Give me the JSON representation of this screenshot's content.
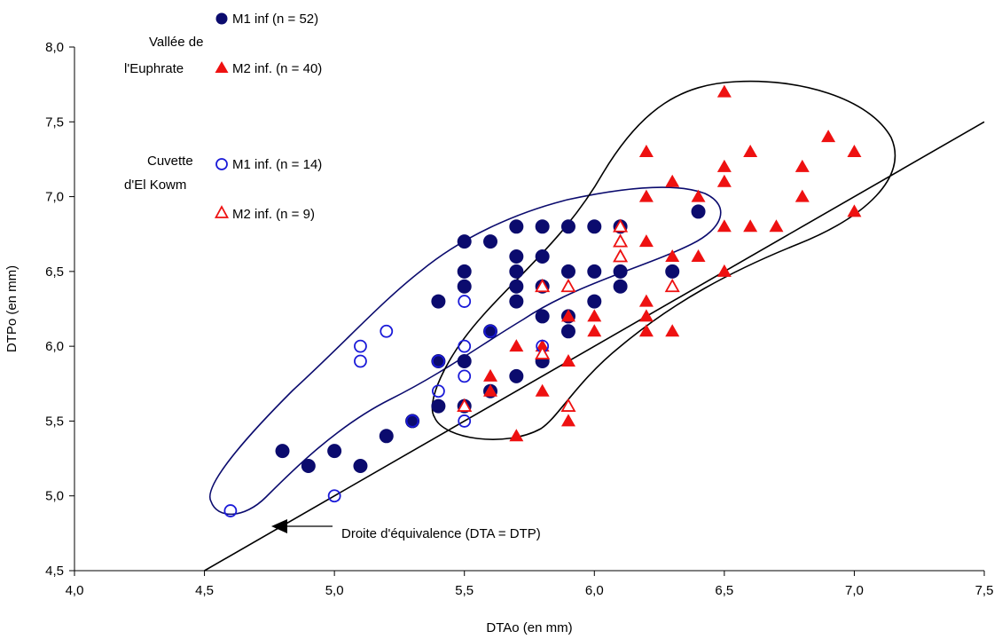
{
  "chart_data": {
    "type": "scatter",
    "xlabel": "DTAo (en mm)",
    "ylabel": "DTPo (en mm)",
    "xlim": [
      4.0,
      7.5
    ],
    "ylim": [
      4.5,
      8.0
    ],
    "xticks": [
      "4,0",
      "4,5",
      "5,0",
      "5,5",
      "6,0",
      "6,5",
      "7,0",
      "7,5"
    ],
    "yticks": [
      "4,5",
      "5,0",
      "5,5",
      "6,0",
      "6,5",
      "7,0",
      "7,5",
      "8,0"
    ],
    "grid": false,
    "legend_groups": [
      {
        "label_lines": [
          "Vallée de",
          "l'Euphrate"
        ]
      },
      {
        "label_lines": [
          "Cuvette",
          "d'El Kowm"
        ]
      }
    ],
    "series": [
      {
        "name": "M1 inf (n = 52)",
        "group": "Vallée de l'Euphrate",
        "marker": "filled-circle",
        "color": "#0b0b6e",
        "points": [
          [
            4.8,
            5.3
          ],
          [
            4.9,
            5.2
          ],
          [
            5.0,
            5.3
          ],
          [
            5.1,
            5.2
          ],
          [
            5.2,
            5.4
          ],
          [
            5.3,
            5.5
          ],
          [
            5.4,
            6.3
          ],
          [
            5.4,
            5.9
          ],
          [
            5.4,
            5.6
          ],
          [
            5.5,
            6.7
          ],
          [
            5.5,
            6.5
          ],
          [
            5.5,
            6.4
          ],
          [
            5.5,
            5.9
          ],
          [
            5.5,
            5.6
          ],
          [
            5.6,
            6.7
          ],
          [
            5.6,
            6.1
          ],
          [
            5.6,
            5.7
          ],
          [
            5.7,
            6.8
          ],
          [
            5.7,
            6.6
          ],
          [
            5.7,
            6.5
          ],
          [
            5.7,
            6.4
          ],
          [
            5.7,
            6.3
          ],
          [
            5.7,
            5.8
          ],
          [
            5.8,
            6.8
          ],
          [
            5.8,
            6.6
          ],
          [
            5.8,
            6.4
          ],
          [
            5.8,
            6.2
          ],
          [
            5.8,
            5.9
          ],
          [
            5.9,
            6.8
          ],
          [
            5.9,
            6.5
          ],
          [
            5.9,
            6.2
          ],
          [
            5.9,
            6.1
          ],
          [
            6.0,
            6.8
          ],
          [
            6.0,
            6.5
          ],
          [
            6.0,
            6.3
          ],
          [
            6.1,
            6.8
          ],
          [
            6.1,
            6.5
          ],
          [
            6.1,
            6.4
          ],
          [
            6.3,
            6.5
          ],
          [
            6.4,
            6.9
          ]
        ]
      },
      {
        "name": "M2 inf. (n = 40)",
        "group": "Vallée de l'Euphrate",
        "marker": "filled-triangle",
        "color": "#ee1111",
        "points": [
          [
            5.5,
            5.6
          ],
          [
            5.6,
            5.8
          ],
          [
            5.6,
            5.7
          ],
          [
            5.7,
            6.0
          ],
          [
            5.7,
            5.4
          ],
          [
            5.8,
            6.0
          ],
          [
            5.8,
            5.7
          ],
          [
            5.9,
            6.2
          ],
          [
            5.9,
            5.9
          ],
          [
            5.9,
            5.5
          ],
          [
            6.0,
            6.2
          ],
          [
            6.0,
            6.1
          ],
          [
            6.2,
            7.3
          ],
          [
            6.2,
            7.0
          ],
          [
            6.2,
            6.7
          ],
          [
            6.2,
            6.3
          ],
          [
            6.2,
            6.2
          ],
          [
            6.2,
            6.1
          ],
          [
            6.3,
            7.1
          ],
          [
            6.3,
            6.6
          ],
          [
            6.3,
            6.1
          ],
          [
            6.4,
            7.0
          ],
          [
            6.4,
            6.6
          ],
          [
            6.5,
            7.7
          ],
          [
            6.5,
            7.2
          ],
          [
            6.5,
            7.1
          ],
          [
            6.5,
            6.8
          ],
          [
            6.5,
            6.5
          ],
          [
            6.6,
            7.3
          ],
          [
            6.6,
            6.8
          ],
          [
            6.7,
            6.8
          ],
          [
            6.8,
            7.2
          ],
          [
            6.8,
            7.0
          ],
          [
            6.9,
            7.4
          ],
          [
            7.0,
            7.3
          ],
          [
            7.0,
            6.9
          ]
        ]
      },
      {
        "name": "M1 inf. (n = 14)",
        "group": "Cuvette d'El Kowm",
        "marker": "open-circle",
        "color": "#1a1ad8",
        "points": [
          [
            4.6,
            4.9
          ],
          [
            5.0,
            5.0
          ],
          [
            5.1,
            6.0
          ],
          [
            5.1,
            5.9
          ],
          [
            5.2,
            6.1
          ],
          [
            5.3,
            5.5
          ],
          [
            5.4,
            5.9
          ],
          [
            5.4,
            5.7
          ],
          [
            5.5,
            6.3
          ],
          [
            5.5,
            6.0
          ],
          [
            5.5,
            5.8
          ],
          [
            5.5,
            5.5
          ],
          [
            5.6,
            6.1
          ],
          [
            5.8,
            6.0
          ]
        ]
      },
      {
        "name": "M2 inf. (n = 9)",
        "group": "Cuvette d'El Kowm",
        "marker": "open-triangle",
        "color": "#ee1111",
        "points": [
          [
            5.5,
            5.6
          ],
          [
            5.8,
            6.4
          ],
          [
            5.9,
            6.4
          ],
          [
            5.9,
            5.6
          ],
          [
            6.1,
            6.8
          ],
          [
            6.1,
            6.7
          ],
          [
            6.1,
            6.6
          ],
          [
            6.3,
            6.4
          ],
          [
            5.8,
            5.95
          ]
        ]
      }
    ],
    "reference_line": {
      "from": [
        4.5,
        4.5
      ],
      "to": [
        7.5,
        7.5
      ]
    },
    "annotations": [
      {
        "text": "Droite d'équivalence (DTA = DTP)",
        "arrow_to": [
          4.77,
          4.8
        ]
      }
    ]
  }
}
